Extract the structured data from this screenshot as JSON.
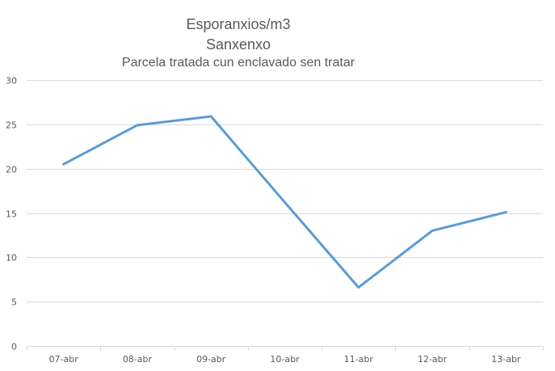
{
  "chart_data": {
    "type": "line",
    "title": "Esporanxios/m3",
    "subtitle": "Sanxenxo",
    "subtitle2": "Parcela tratada cun enclavado sen tratar",
    "categories": [
      "07-abr",
      "08-abr",
      "09-abr",
      "10-abr",
      "11-abr",
      "12-abr",
      "13-abr"
    ],
    "series": [
      {
        "name": "Esporanxios/m3",
        "values": [
          20.5,
          24.9,
          25.9,
          16.2,
          6.6,
          13.0,
          15.1
        ],
        "color": "#5B9BD5"
      }
    ],
    "xlabel": "",
    "ylabel": "",
    "ylim": [
      0,
      30
    ],
    "yticks": [
      0,
      5,
      10,
      15,
      20,
      25,
      30
    ],
    "grid": true,
    "legend": "none"
  },
  "colors": {
    "line": "#5B9BD5",
    "grid": "#D9D9D9",
    "text": "#595959"
  }
}
